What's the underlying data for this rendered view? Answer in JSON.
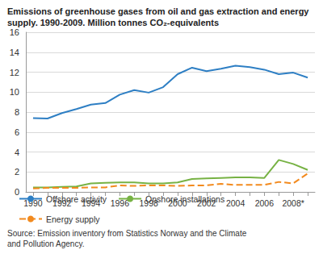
{
  "chart_data": {
    "type": "line",
    "title": "Emissions of greenhouse gases from oil and gas extraction and energy supply. 1990-2009. Million tonnes CO₂-equivalents",
    "source": "Source: Emission inventory from Statistics Norway and the Climate and Pollution Agency.",
    "categories": [
      "1990",
      null,
      "1992",
      null,
      "1994",
      null,
      "1996",
      null,
      "1998",
      null,
      "2000",
      null,
      "2002",
      null,
      "2004",
      null,
      "2006",
      null,
      "2008*",
      null
    ],
    "series": [
      {
        "name": "Offshore activity",
        "color": "#2e7fc4",
        "line_style": "solid",
        "values": [
          7.4,
          7.35,
          7.9,
          8.3,
          8.75,
          8.9,
          9.75,
          10.2,
          9.95,
          10.5,
          11.8,
          12.45,
          12.1,
          12.35,
          12.65,
          12.5,
          12.25,
          11.8,
          11.95,
          11.45
        ]
      },
      {
        "name": "Onshore installations",
        "color": "#77b244",
        "line_style": "solid",
        "values": [
          0.45,
          0.45,
          0.5,
          0.55,
          0.85,
          0.9,
          0.95,
          0.95,
          0.85,
          0.85,
          0.95,
          1.3,
          1.35,
          1.4,
          1.45,
          1.45,
          1.4,
          3.2,
          2.8,
          2.2
        ]
      },
      {
        "name": "Energy supply",
        "color": "#f28a1e",
        "line_style": "dashed",
        "values": [
          0.35,
          0.4,
          0.4,
          0.4,
          0.45,
          0.45,
          0.65,
          0.6,
          0.65,
          0.65,
          0.6,
          0.65,
          0.65,
          0.8,
          0.7,
          0.7,
          0.7,
          1.0,
          0.85,
          1.85
        ]
      }
    ],
    "ylim": [
      0,
      16
    ],
    "yticks": [
      0,
      2,
      4,
      6,
      8,
      10,
      12,
      14,
      16
    ],
    "grid": true,
    "legend": "bottom"
  }
}
